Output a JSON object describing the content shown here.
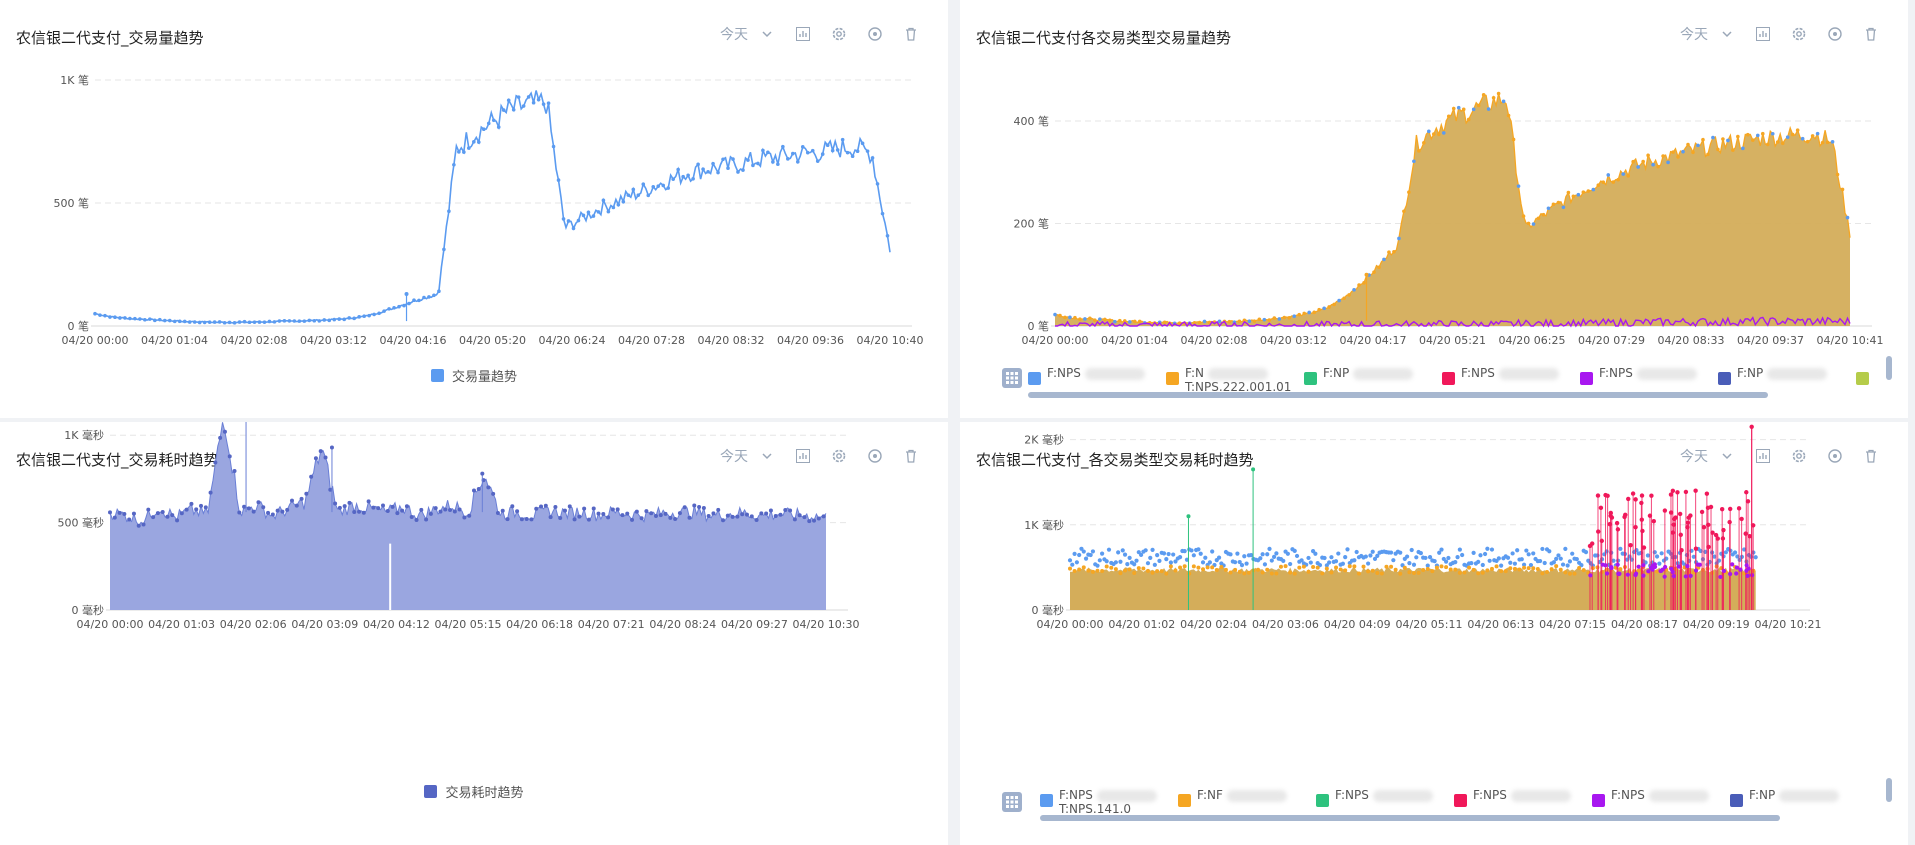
{
  "toolbar": {
    "range_label": "今天"
  },
  "icons": {
    "dropdown": "chevron-down-icon",
    "chart": "bar-chart-icon",
    "settings": "gear-icon",
    "target": "target-icon",
    "delete": "trash-icon"
  },
  "chart_data": [
    {
      "type": "line",
      "title": "农信银二代支付_交易量趋势",
      "y_ticks": [
        "0 笔",
        "500 笔",
        "1K 笔"
      ],
      "y_ticks_values": [
        0,
        500,
        1000
      ],
      "ylim": [
        0,
        1000
      ],
      "x_ticks": [
        "04/20 00:00",
        "04/20 01:04",
        "04/20 02:08",
        "04/20 03:12",
        "04/20 04:16",
        "04/20 05:20",
        "04/20 06:24",
        "04/20 07:28",
        "04/20 08:32",
        "04/20 09:36",
        "04/20 10:40"
      ],
      "legend_position": "bottom",
      "color": "#5b9bf0",
      "series": [
        {
          "name": "交易量趋势",
          "values": [
            50,
            36,
            30,
            26,
            22,
            18,
            16,
            15,
            15,
            16,
            18,
            20,
            22,
            25,
            30,
            40,
            60,
            85,
            110,
            130,
            720,
            780,
            830,
            880,
            900,
            910,
            400,
            440,
            480,
            510,
            540,
            570,
            600,
            625,
            640,
            650,
            665,
            680,
            690,
            700,
            705,
            720,
            730,
            700,
            310
          ]
        }
      ]
    },
    {
      "type": "area",
      "title": "农信银二代支付各交易类型交易量趋势",
      "y_ticks": [
        "0 笔",
        "200 笔",
        "400 笔"
      ],
      "y_ticks_values": [
        0,
        200,
        400
      ],
      "ylim": [
        0,
        480
      ],
      "x_ticks": [
        "04/20 00:00",
        "04/20 01:04",
        "04/20 02:08",
        "04/20 03:12",
        "04/20 04:17",
        "04/20 05:21",
        "04/20 06:25",
        "04/20 07:29",
        "04/20 08:33",
        "04/20 09:37",
        "04/20 10:41"
      ],
      "legend_position": "bottom",
      "fill_color": "#d4ad5a",
      "series": [
        {
          "name": "F:NPS",
          "color": "#5b9bf0"
        },
        {
          "name": "F:N",
          "color": "#f5a623",
          "label_line2": "T:NPS.222.001.01"
        },
        {
          "name": "F:NP",
          "color": "#2ec27e"
        },
        {
          "name": "F:NPS",
          "color": "#f0185a"
        },
        {
          "name": "F:NPS",
          "color": "#a817f0"
        },
        {
          "name": "F:NP",
          "color": "#4a5db8"
        }
      ],
      "values": [
        22,
        16,
        13,
        11,
        9,
        8,
        7,
        7,
        7,
        8,
        9,
        11,
        14,
        18,
        24,
        34,
        55,
        85,
        120,
        160,
        355,
        385,
        405,
        420,
        435,
        445,
        190,
        215,
        240,
        260,
        280,
        295,
        310,
        322,
        330,
        340,
        348,
        355,
        360,
        366,
        370,
        372,
        375,
        360,
        180
      ],
      "second_series_values": [
        1,
        1,
        1,
        1,
        1,
        1,
        1,
        1,
        1,
        1,
        1,
        1,
        1,
        1,
        1,
        1,
        2,
        2,
        2,
        2,
        3,
        3,
        3,
        3,
        3,
        3,
        4,
        4,
        4,
        5,
        5,
        6,
        7,
        7,
        8,
        8,
        8,
        8,
        9,
        9,
        9,
        9,
        9,
        9,
        9
      ]
    },
    {
      "type": "area",
      "title": "农信银二代支付_交易耗时趋势",
      "y_ticks": [
        "0 毫秒",
        "500 毫秒",
        "1K 毫秒"
      ],
      "y_ticks_values": [
        0,
        500,
        1000
      ],
      "ylim": [
        0,
        1150
      ],
      "x_ticks": [
        "04/20 00:00",
        "04/20 01:03",
        "04/20 02:06",
        "04/20 03:09",
        "04/20 04:12",
        "04/20 05:15",
        "04/20 06:18",
        "04/20 07:21",
        "04/20 08:24",
        "04/20 09:27",
        "04/20 10:30"
      ],
      "legend_position": "bottom",
      "color": "#6a7fd6",
      "series": [
        {
          "name": "交易耗时趋势",
          "values": [
            560,
            540,
            510,
            590,
            530,
            570,
            550,
            1120,
            560,
            600,
            540,
            580,
            620,
            930,
            560,
            600,
            580,
            560,
            590,
            540,
            575,
            600,
            560,
            780,
            550,
            560,
            540,
            570,
            555,
            560,
            545,
            560,
            550,
            540,
            555,
            560,
            560,
            540,
            550,
            555,
            540,
            550,
            545,
            540,
            530
          ]
        }
      ]
    },
    {
      "type": "scatter",
      "title": "农信银二代支付_各交易类型交易耗时趋势",
      "y_ticks": [
        "0 毫秒",
        "1K 毫秒",
        "2K 毫秒"
      ],
      "y_ticks_values": [
        0,
        1000,
        2000
      ],
      "ylim": [
        0,
        2300
      ],
      "x_ticks": [
        "04/20 00:00",
        "04/20 01:02",
        "04/20 02:04",
        "04/20 03:06",
        "04/20 04:09",
        "04/20 05:11",
        "04/20 06:13",
        "04/20 07:15",
        "04/20 08:17",
        "04/20 09:19",
        "04/20 10:21"
      ],
      "legend_position": "bottom",
      "fill_color": "#d4ad5a",
      "series": [
        {
          "name": "F:NPS",
          "color": "#5b9bf0",
          "label_line2": "T:NPS.141.0",
          "values": [
            640,
            620,
            600,
            650,
            630,
            610,
            650,
            620,
            640,
            610,
            600,
            620
          ]
        },
        {
          "name": "F:NF",
          "color": "#f5a623",
          "values": [
            480,
            470,
            450,
            470,
            480,
            460,
            470,
            480,
            460,
            470,
            470,
            460
          ]
        },
        {
          "name": "F:NPS",
          "color": "#2ec27e",
          "values": [
            1650
          ]
        },
        {
          "name": "F:NPS",
          "color": "#f0185a",
          "values": [
            1300,
            1250,
            1150,
            1200,
            1100,
            1350,
            1300,
            2150
          ]
        },
        {
          "name": "F:NPS",
          "color": "#a817f0",
          "values": [
            500,
            450,
            420,
            480,
            400
          ]
        },
        {
          "name": "F:NP",
          "color": "#4a5db8",
          "values": [
            480,
            450
          ]
        }
      ]
    }
  ]
}
